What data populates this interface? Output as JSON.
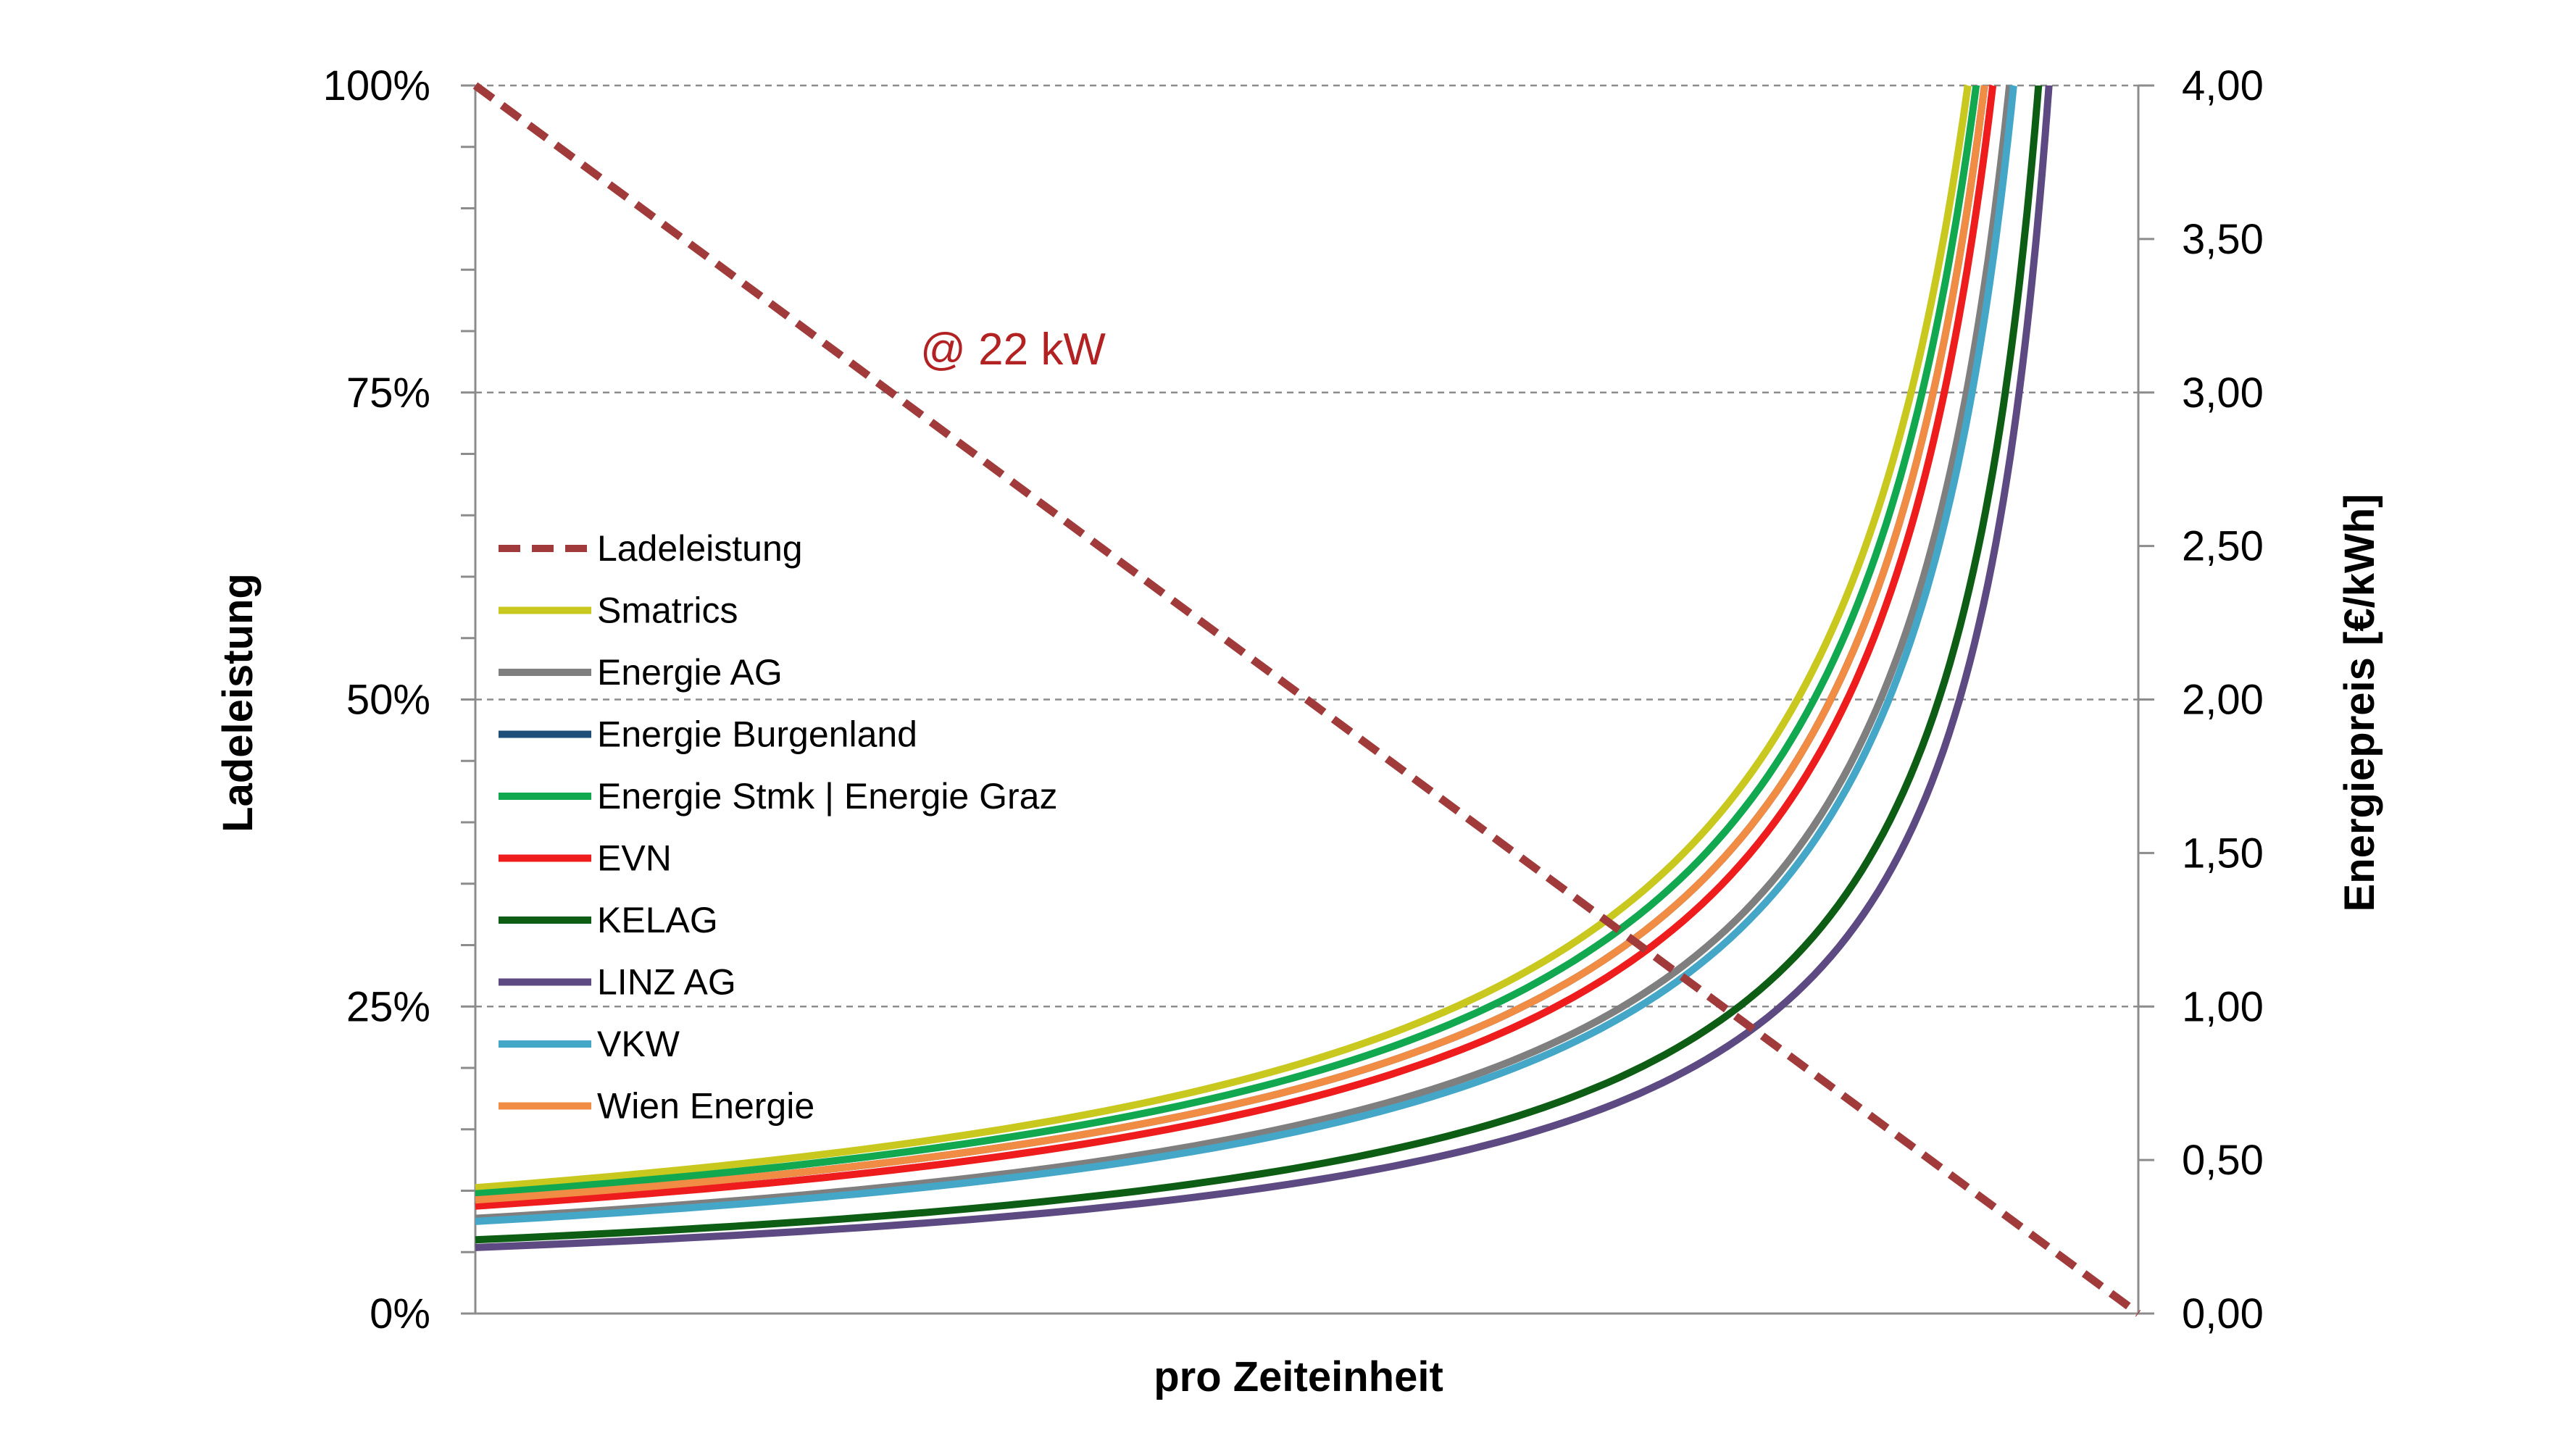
{
  "chart_data": {
    "type": "line",
    "xlabel": "pro Zeiteinheit",
    "ylabel_left": "Ladeleistung",
    "ylabel_right": "Energiepreis [€/kWh]",
    "left_axis": {
      "range": [
        0,
        100
      ],
      "ticks": [
        "0%",
        "25%",
        "50%",
        "75%",
        "100%"
      ]
    },
    "right_axis": {
      "range": [
        0,
        4
      ],
      "ticks": [
        "0,00",
        "0,50",
        "1,00",
        "1,50",
        "2,00",
        "2,50",
        "3,00",
        "3,50",
        "4,00"
      ]
    },
    "x_axis_labels": "none",
    "grid": "horizontal, dashed, at left-axis major ticks",
    "annotation": "@ 22 kW",
    "legend_position": "left, inside plot area",
    "series": [
      {
        "name": "Ladeleistung",
        "axis": "left",
        "style": "dashed",
        "color": "#a13b3b",
        "x": [
          0,
          1
        ],
        "y": [
          100,
          0
        ]
      },
      {
        "name": "Smatrics",
        "axis": "right",
        "color": "#c8c81e",
        "p0": 0.41
      },
      {
        "name": "Energie AG",
        "axis": "right",
        "color": "#7f7f7f",
        "p0": 0.31
      },
      {
        "name": "Energie Burgenland",
        "axis": "right",
        "color": "#1f4e79",
        "p0": 0.37
      },
      {
        "name": "Energie Stmk | Energie Graz",
        "axis": "right",
        "color": "#11a84f",
        "p0": 0.39
      },
      {
        "name": "EVN",
        "axis": "right",
        "color": "#ee1c1c",
        "p0": 0.35
      },
      {
        "name": "KELAG",
        "axis": "right",
        "color": "#0d5e14",
        "p0": 0.24
      },
      {
        "name": "LINZ AG",
        "axis": "right",
        "color": "#5e4a82",
        "p0": 0.215
      },
      {
        "name": "VKW",
        "axis": "right",
        "color": "#45a7c8",
        "p0": 0.3
      },
      {
        "name": "Wien Energie",
        "axis": "right",
        "color": "#f08c44",
        "p0": 0.37
      }
    ],
    "curve_note": "price y = p0 / (1 - x) for x in [0, 1), ending at 4,00"
  }
}
